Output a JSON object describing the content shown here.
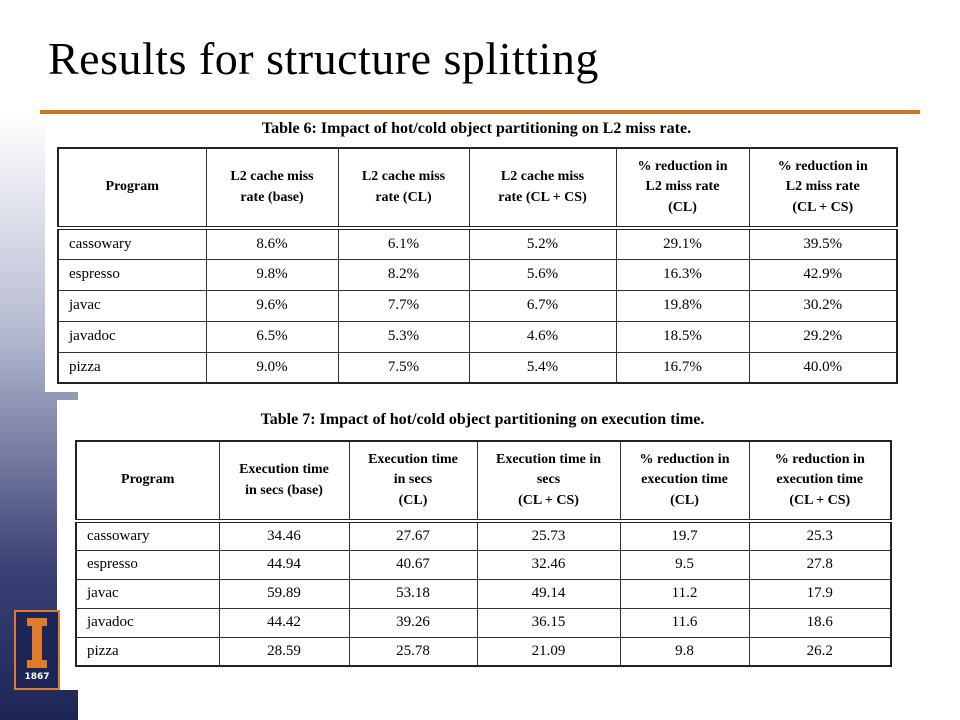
{
  "title": "Results for structure splitting",
  "tables": [
    {
      "caption": "Table 6: Impact of hot/cold object partitioning on L2 miss rate.",
      "header": [
        [
          "Program"
        ],
        [
          "L2 cache miss",
          "rate (base)"
        ],
        [
          "L2 cache miss",
          "rate (CL)"
        ],
        [
          "L2 cache miss",
          "rate (CL + CS)"
        ],
        [
          "% reduction in",
          "L2 miss rate",
          "(CL)"
        ],
        [
          "% reduction in",
          "L2 miss rate",
          "(CL + CS)"
        ]
      ],
      "rows": [
        [
          "cassowary",
          "8.6%",
          "6.1%",
          "5.2%",
          "29.1%",
          "39.5%"
        ],
        [
          "espresso",
          "9.8%",
          "8.2%",
          "5.6%",
          "16.3%",
          "42.9%"
        ],
        [
          "javac",
          "9.6%",
          "7.7%",
          "6.7%",
          "19.8%",
          "30.2%"
        ],
        [
          "javadoc",
          "6.5%",
          "5.3%",
          "4.6%",
          "18.5%",
          "29.2%"
        ],
        [
          "pizza",
          "9.0%",
          "7.5%",
          "5.4%",
          "16.7%",
          "40.0%"
        ]
      ]
    },
    {
      "caption": "Table 7: Impact of hot/cold object partitioning on execution time.",
      "header": [
        [
          "Program"
        ],
        [
          "Execution time",
          "in secs (base)"
        ],
        [
          "Execution time",
          "in secs",
          "(CL)"
        ],
        [
          "Execution time in",
          "secs",
          "(CL + CS)"
        ],
        [
          "% reduction in",
          "execution time",
          "(CL)"
        ],
        [
          "% reduction in",
          "execution time",
          "(CL + CS)"
        ]
      ],
      "rows": [
        [
          "cassowary",
          "34.46",
          "27.67",
          "25.73",
          "19.7",
          "25.3"
        ],
        [
          "espresso",
          "44.94",
          "40.67",
          "32.46",
          "9.5",
          "27.8"
        ],
        [
          "javac",
          "59.89",
          "53.18",
          "49.14",
          "11.2",
          "17.9"
        ],
        [
          "javadoc",
          "44.42",
          "39.26",
          "36.15",
          "11.6",
          "18.6"
        ],
        [
          "pizza",
          "28.59",
          "25.78",
          "21.09",
          "9.8",
          "26.2"
        ]
      ]
    }
  ],
  "logo": {
    "year": "1867"
  }
}
